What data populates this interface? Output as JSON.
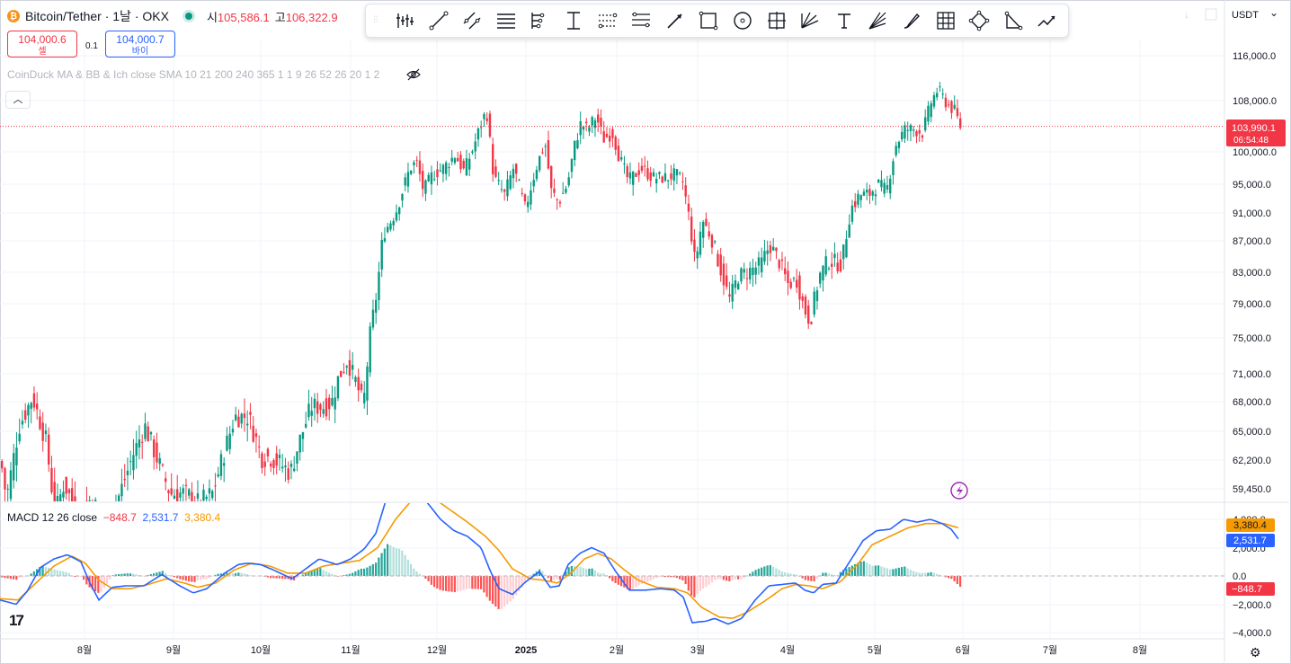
{
  "header": {
    "symbol_title": "Bitcoin/Tether · 1날 · OKX",
    "open_label": "시",
    "open_value": "105,586.1",
    "high_label": "고",
    "high_value": "106,322.9",
    "sell_price": "104,000.6",
    "sell_label": "셀",
    "spread": "0.1",
    "buy_price": "104,000.7",
    "buy_label": "바이",
    "indicator_text": "CoinDuck MA & BB & Ich close SMA 10 21 200 240 365 1 1 9 26 52 26 20 1 2",
    "currency": "USDT"
  },
  "toolbar": {
    "tools": [
      "grip-icon",
      "candle-icon",
      "trend-line-icon",
      "parallel-channel-icon",
      "horizontal-lines-icon",
      "pitchfork-icon",
      "date-range-icon",
      "fib-retracement-icon",
      "fib-extension-icon",
      "arrow-line-icon",
      "rectangle-icon",
      "circle-icon",
      "crosshair-box-icon",
      "gann-fan-icon",
      "text-icon",
      "fan-lines-icon",
      "brush-icon",
      "grid-icon",
      "polygon-icon",
      "triangle-icon",
      "trend-arrow-icon"
    ]
  },
  "price_panel": {
    "current_price": "103,990.1",
    "countdown": "06:54:48",
    "y_ticks": [
      "116,000.0",
      "108,000.0",
      "100,000.0",
      "95,000.0",
      "91,000.0",
      "87,000.0",
      "83,000.0",
      "79,000.0",
      "75,000.0",
      "71,000.0",
      "68,000.0",
      "65,000.0",
      "62,200.0",
      "59,450.0"
    ]
  },
  "macd_panel": {
    "label": "MACD 12 26 close",
    "hist_value": "−848.7",
    "macd_value": "2,531.7",
    "signal_value": "3,380.4",
    "y_ticks": [
      "4,000.0",
      "2,000.0",
      "0.0",
      "−2,000.0",
      "−4,000.0"
    ]
  },
  "x_axis": {
    "labels": [
      "8월",
      "9월",
      "10월",
      "11월",
      "12월",
      "2025",
      "2월",
      "3월",
      "4월",
      "5월",
      "6월",
      "7월",
      "8월"
    ]
  },
  "colors": {
    "up": "#089981",
    "down": "#f23645",
    "macd": "#2962ff",
    "signal": "#f59a00"
  },
  "chart_data": {
    "type": "candlestick",
    "price_range": [
      57000,
      122000
    ],
    "macd_range": [
      -4800,
      4800
    ],
    "price_anchors": [
      [
        0,
        62000
      ],
      [
        6,
        58500
      ],
      [
        20,
        65500
      ],
      [
        35,
        68500
      ],
      [
        50,
        64000
      ],
      [
        60,
        57000
      ],
      [
        70,
        60000
      ],
      [
        85,
        57000
      ],
      [
        100,
        58500
      ],
      [
        110,
        57000
      ],
      [
        120,
        57000
      ],
      [
        130,
        58500
      ],
      [
        148,
        63000
      ],
      [
        160,
        65500
      ],
      [
        175,
        62000
      ],
      [
        188,
        59000
      ],
      [
        205,
        59000
      ],
      [
        220,
        58000
      ],
      [
        235,
        59000
      ],
      [
        250,
        63500
      ],
      [
        260,
        66500
      ],
      [
        275,
        66500
      ],
      [
        290,
        62500
      ],
      [
        300,
        62500
      ],
      [
        315,
        61500
      ],
      [
        322,
        61000
      ],
      [
        330,
        63500
      ],
      [
        345,
        67500
      ],
      [
        360,
        67500
      ],
      [
        368,
        68000
      ],
      [
        375,
        70500
      ],
      [
        385,
        72500
      ],
      [
        395,
        70000
      ],
      [
        403,
        67500
      ],
      [
        410,
        75000
      ],
      [
        418,
        80500
      ],
      [
        425,
        88000
      ],
      [
        432,
        89500
      ],
      [
        440,
        91500
      ],
      [
        455,
        97500
      ],
      [
        462,
        98500
      ],
      [
        470,
        94000
      ],
      [
        480,
        96500
      ],
      [
        492,
        97500
      ],
      [
        505,
        99500
      ],
      [
        515,
        97000
      ],
      [
        525,
        100500
      ],
      [
        533,
        104000
      ],
      [
        540,
        106500
      ],
      [
        548,
        96000
      ],
      [
        560,
        93500
      ],
      [
        570,
        97500
      ],
      [
        583,
        91500
      ],
      [
        595,
        97500
      ],
      [
        605,
        101500
      ],
      [
        612,
        94000
      ],
      [
        620,
        92500
      ],
      [
        630,
        95000
      ],
      [
        638,
        101000
      ],
      [
        645,
        104500
      ],
      [
        652,
        103500
      ],
      [
        662,
        105500
      ],
      [
        670,
        102000
      ],
      [
        680,
        103000
      ],
      [
        688,
        99000
      ],
      [
        698,
        95500
      ],
      [
        712,
        97500
      ],
      [
        725,
        96000
      ],
      [
        740,
        96000
      ],
      [
        750,
        96500
      ],
      [
        758,
        95500
      ],
      [
        765,
        90500
      ],
      [
        772,
        84000
      ],
      [
        780,
        90000
      ],
      [
        790,
        87500
      ],
      [
        800,
        83500
      ],
      [
        810,
        79500
      ],
      [
        820,
        82500
      ],
      [
        830,
        83000
      ],
      [
        845,
        84000
      ],
      [
        855,
        86500
      ],
      [
        865,
        84500
      ],
      [
        875,
        81500
      ],
      [
        885,
        82000
      ],
      [
        893,
        78500
      ],
      [
        900,
        77000
      ],
      [
        910,
        82500
      ],
      [
        920,
        84500
      ],
      [
        935,
        84000
      ],
      [
        945,
        91500
      ],
      [
        955,
        93500
      ],
      [
        965,
        93500
      ],
      [
        975,
        95000
      ],
      [
        985,
        94000
      ],
      [
        995,
        101000
      ],
      [
        1005,
        103500
      ],
      [
        1015,
        103500
      ],
      [
        1025,
        103000
      ],
      [
        1035,
        108000
      ],
      [
        1042,
        110000
      ],
      [
        1052,
        107500
      ],
      [
        1060,
        106500
      ],
      [
        1067,
        104000
      ]
    ],
    "macd_anchors": [
      [
        0,
        -1700
      ],
      [
        18,
        -2000
      ],
      [
        30,
        -1100
      ],
      [
        45,
        600
      ],
      [
        60,
        1200
      ],
      [
        75,
        1500
      ],
      [
        90,
        1000
      ],
      [
        100,
        -500
      ],
      [
        110,
        -1700
      ],
      [
        125,
        -800
      ],
      [
        140,
        -700
      ],
      [
        160,
        -700
      ],
      [
        180,
        100
      ],
      [
        200,
        -700
      ],
      [
        215,
        -1200
      ],
      [
        230,
        -900
      ],
      [
        250,
        200
      ],
      [
        265,
        800
      ],
      [
        275,
        900
      ],
      [
        290,
        800
      ],
      [
        305,
        400
      ],
      [
        325,
        -200
      ],
      [
        340,
        500
      ],
      [
        355,
        1200
      ],
      [
        375,
        800
      ],
      [
        390,
        1200
      ],
      [
        405,
        1900
      ],
      [
        418,
        3000
      ],
      [
        430,
        5500
      ],
      [
        445,
        6500
      ],
      [
        460,
        6000
      ],
      [
        475,
        5200
      ],
      [
        490,
        4000
      ],
      [
        505,
        3200
      ],
      [
        520,
        2800
      ],
      [
        535,
        2000
      ],
      [
        545,
        400
      ],
      [
        555,
        -900
      ],
      [
        570,
        -1300
      ],
      [
        585,
        -400
      ],
      [
        600,
        300
      ],
      [
        612,
        -800
      ],
      [
        622,
        -700
      ],
      [
        632,
        800
      ],
      [
        645,
        1600
      ],
      [
        658,
        2000
      ],
      [
        672,
        1600
      ],
      [
        685,
        300
      ],
      [
        700,
        -1000
      ],
      [
        718,
        -1000
      ],
      [
        735,
        -900
      ],
      [
        750,
        -1000
      ],
      [
        760,
        -1500
      ],
      [
        770,
        -3300
      ],
      [
        785,
        -3200
      ],
      [
        795,
        -3000
      ],
      [
        810,
        -3400
      ],
      [
        825,
        -3000
      ],
      [
        840,
        -1700
      ],
      [
        855,
        -700
      ],
      [
        870,
        -600
      ],
      [
        885,
        -500
      ],
      [
        895,
        -1000
      ],
      [
        905,
        -1200
      ],
      [
        915,
        -600
      ],
      [
        930,
        -500
      ],
      [
        945,
        1000
      ],
      [
        960,
        2500
      ],
      [
        975,
        3200
      ],
      [
        990,
        3300
      ],
      [
        1005,
        4000
      ],
      [
        1020,
        3800
      ],
      [
        1035,
        4000
      ],
      [
        1048,
        3700
      ],
      [
        1058,
        3300
      ],
      [
        1067,
        2531
      ]
    ],
    "signal_anchors": [
      [
        0,
        -1600
      ],
      [
        20,
        -1700
      ],
      [
        40,
        -500
      ],
      [
        60,
        700
      ],
      [
        80,
        1400
      ],
      [
        95,
        900
      ],
      [
        110,
        -300
      ],
      [
        125,
        -900
      ],
      [
        145,
        -900
      ],
      [
        165,
        -600
      ],
      [
        185,
        -200
      ],
      [
        205,
        -500
      ],
      [
        220,
        -800
      ],
      [
        240,
        -500
      ],
      [
        260,
        400
      ],
      [
        280,
        900
      ],
      [
        300,
        700
      ],
      [
        320,
        200
      ],
      [
        340,
        200
      ],
      [
        360,
        700
      ],
      [
        380,
        900
      ],
      [
        400,
        1100
      ],
      [
        420,
        2000
      ],
      [
        440,
        4000
      ],
      [
        460,
        5500
      ],
      [
        480,
        5600
      ],
      [
        500,
        4700
      ],
      [
        520,
        3800
      ],
      [
        540,
        2800
      ],
      [
        555,
        1800
      ],
      [
        570,
        500
      ],
      [
        590,
        -200
      ],
      [
        605,
        -300
      ],
      [
        620,
        -500
      ],
      [
        635,
        200
      ],
      [
        650,
        1200
      ],
      [
        665,
        1600
      ],
      [
        680,
        1200
      ],
      [
        695,
        400
      ],
      [
        710,
        -300
      ],
      [
        730,
        -800
      ],
      [
        750,
        -900
      ],
      [
        765,
        -1200
      ],
      [
        780,
        -2200
      ],
      [
        800,
        -2900
      ],
      [
        815,
        -3000
      ],
      [
        830,
        -2600
      ],
      [
        850,
        -1800
      ],
      [
        870,
        -900
      ],
      [
        885,
        -600
      ],
      [
        900,
        -700
      ],
      [
        915,
        -900
      ],
      [
        935,
        -400
      ],
      [
        955,
        900
      ],
      [
        970,
        2200
      ],
      [
        990,
        2800
      ],
      [
        1010,
        3400
      ],
      [
        1030,
        3700
      ],
      [
        1050,
        3700
      ],
      [
        1067,
        3380
      ]
    ]
  }
}
